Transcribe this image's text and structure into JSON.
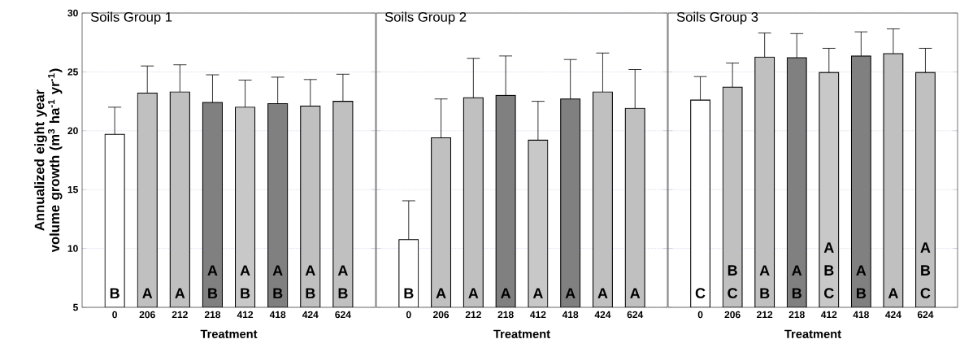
{
  "chart_data": [
    {
      "type": "bar",
      "title": "Soils Group 1",
      "xlabel": "Treatment",
      "ylabel": "Annualized eight year volume growth (m$^{3}$ ha$^{-1}$ yr$^{-1}$)",
      "categories": [
        "0",
        "206",
        "212",
        "218",
        "412",
        "418",
        "424",
        "624"
      ],
      "values": [
        19.7,
        23.2,
        23.3,
        22.4,
        22.0,
        22.3,
        22.1,
        22.5
      ],
      "errors": [
        [
          19.7,
          22.0
        ],
        [
          23.2,
          25.5
        ],
        [
          23.3,
          25.6
        ],
        [
          22.4,
          24.75
        ],
        [
          22.0,
          24.3
        ],
        [
          22.3,
          24.55
        ],
        [
          22.1,
          24.35
        ],
        [
          22.5,
          24.8
        ]
      ],
      "colors": [
        "#ffffff",
        "#c0c0c0",
        "#c0c0c0",
        "#808080",
        "#c8c8c8",
        "#808080",
        "#c0c0c0",
        "#c0c0c0"
      ],
      "ylim": [
        5,
        30
      ],
      "yticks": [
        5,
        10,
        15,
        20,
        25,
        30
      ],
      "grid": "y",
      "value_labels": [
        "B",
        "A",
        "A",
        "A B",
        "A B",
        "A B",
        "A B",
        "A B"
      ]
    },
    {
      "type": "bar",
      "title": "Soils Group 2",
      "xlabel": "Treatment",
      "categories": [
        "0",
        "206",
        "212",
        "218",
        "412",
        "418",
        "424",
        "624"
      ],
      "values": [
        10.75,
        19.4,
        22.8,
        23.0,
        19.2,
        22.7,
        23.3,
        21.9
      ],
      "errors": [
        [
          10.75,
          14.05
        ],
        [
          19.4,
          22.7
        ],
        [
          22.8,
          26.15
        ],
        [
          23.0,
          26.35
        ],
        [
          19.2,
          22.5
        ],
        [
          22.7,
          26.05
        ],
        [
          23.3,
          26.6
        ],
        [
          21.9,
          25.2
        ]
      ],
      "colors": [
        "#ffffff",
        "#c0c0c0",
        "#c0c0c0",
        "#808080",
        "#c8c8c8",
        "#808080",
        "#c0c0c0",
        "#c0c0c0"
      ],
      "ylim": [
        5,
        30
      ],
      "yticks": [
        5,
        10,
        15,
        20,
        25,
        30
      ],
      "grid": "y",
      "tick_labels": "x",
      "value_labels": [
        "B",
        "A",
        "A",
        "A",
        "A",
        "A",
        "A",
        "A"
      ]
    },
    {
      "type": "bar",
      "title": "Soils Group 3",
      "xlabel": "Treatment",
      "categories": [
        "0",
        "206",
        "212",
        "218",
        "412",
        "418",
        "424",
        "624"
      ],
      "values": [
        22.6,
        23.7,
        26.25,
        26.2,
        24.95,
        26.35,
        26.55,
        24.95
      ],
      "errors": [
        [
          22.6,
          24.6
        ],
        [
          23.7,
          25.75
        ],
        [
          26.25,
          28.3
        ],
        [
          26.2,
          28.25
        ],
        [
          24.95,
          27.0
        ],
        [
          26.35,
          28.4
        ],
        [
          26.55,
          28.65
        ],
        [
          24.95,
          27.0
        ]
      ],
      "colors": [
        "#ffffff",
        "#c0c0c0",
        "#c0c0c0",
        "#808080",
        "#c8c8c8",
        "#808080",
        "#c0c0c0",
        "#c0c0c0"
      ],
      "ylim": [
        5,
        30
      ],
      "yticks": [
        5,
        10,
        15,
        20,
        25,
        30
      ],
      "grid": "y",
      "tick_labels": "x",
      "value_labels": [
        "C",
        "B C",
        "A B",
        "A B",
        "A B C",
        "A B",
        "A",
        "A B C"
      ]
    }
  ]
}
